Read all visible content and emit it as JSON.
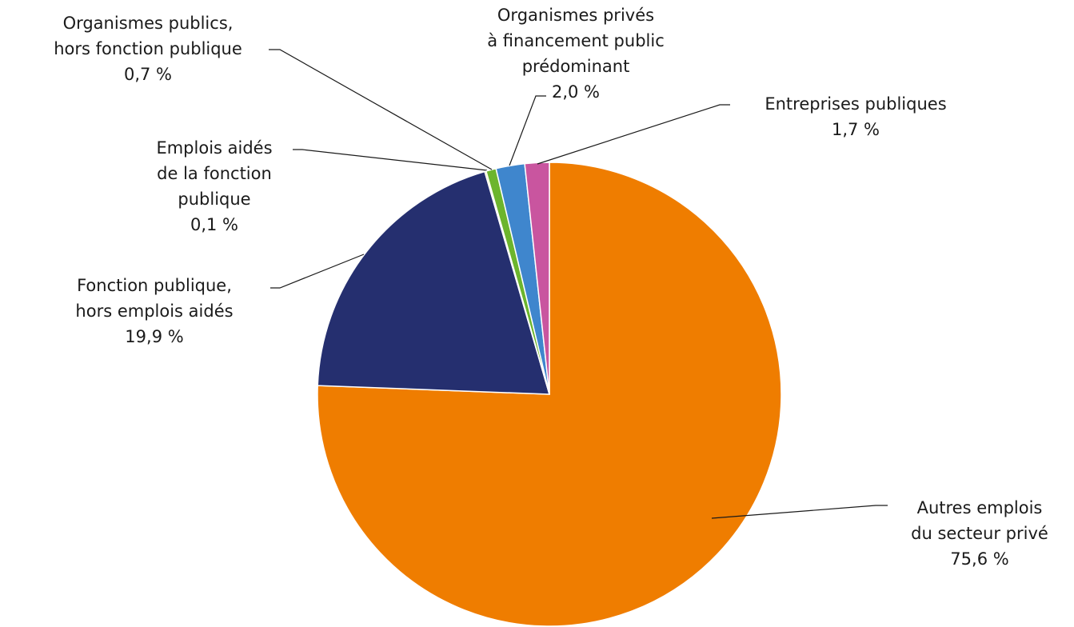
{
  "chart_data": {
    "type": "pie",
    "categories": [
      "Autres emplois\ndu secteur privé",
      "Fonction publique,\nhors emplois aidés",
      "Emplois aidés\nde la fonction\npublique",
      "Organismes publics,\nhors fonction publique",
      "Organismes privés\nà financement public\nprédominant",
      "Entreprises publiques"
    ],
    "values": [
      75.6,
      19.9,
      0.1,
      0.7,
      2.0,
      1.7
    ],
    "value_labels": [
      "75,6 %",
      "19,9 %",
      "0,1 %",
      "0,7 %",
      "2,0 %",
      "1,7 %"
    ],
    "colors": [
      "#ef7d00",
      "#252f6f",
      "#f2e500",
      "#6cb52d",
      "#3f86cd",
      "#c9559f"
    ]
  }
}
